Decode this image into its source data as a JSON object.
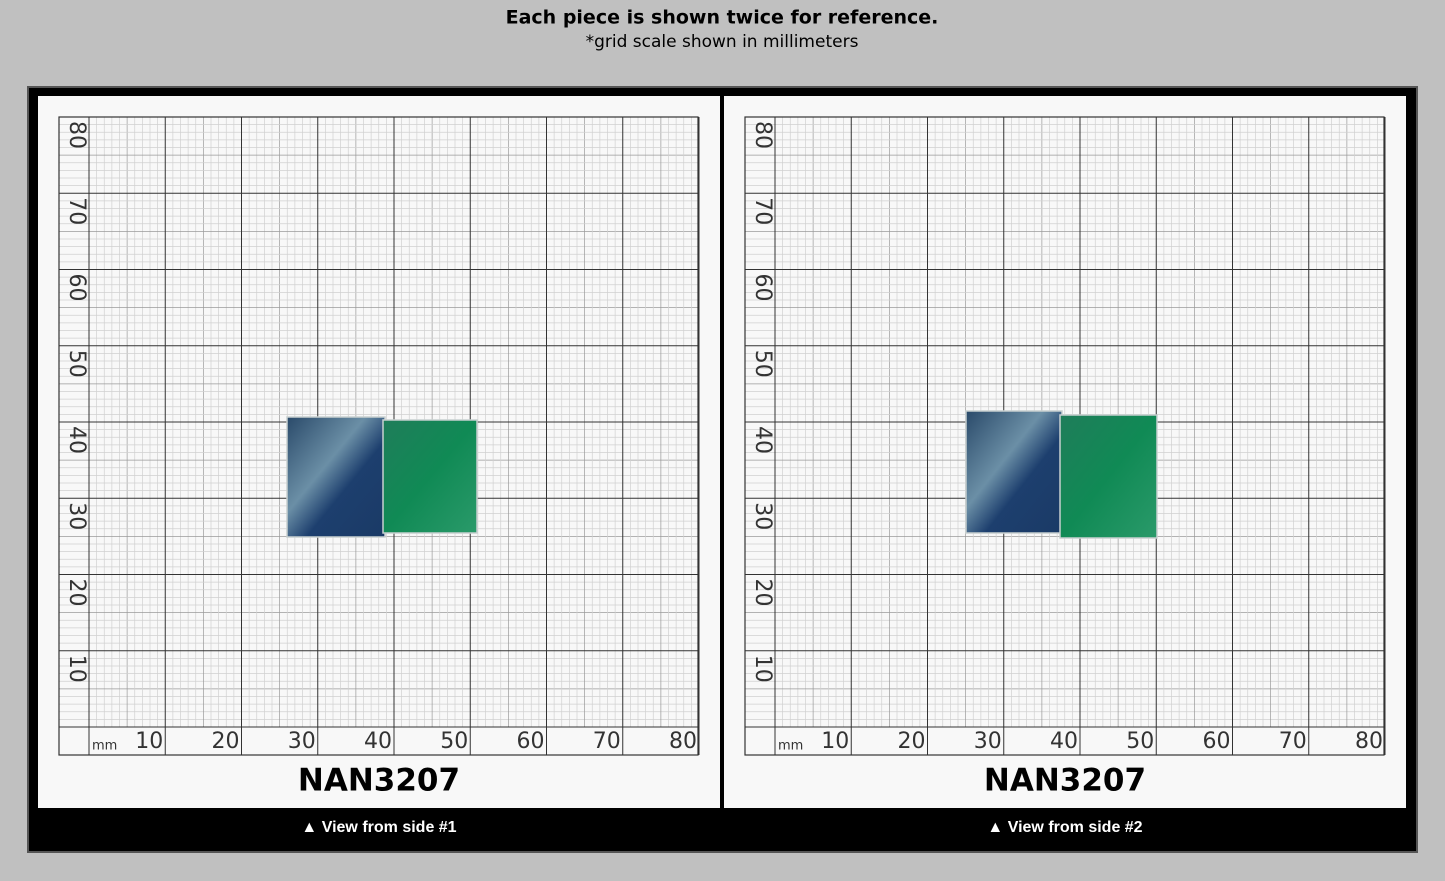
{
  "header": {
    "title": "Each piece is shown twice for reference.",
    "subtitle": "*grid scale shown in millimeters"
  },
  "panels": [
    {
      "x_labels": [
        "mm",
        "10",
        "20",
        "30",
        "40",
        "50",
        "60",
        "70",
        "80"
      ],
      "y_labels": [
        "10",
        "20",
        "30",
        "40",
        "50",
        "60",
        "70",
        "80"
      ],
      "code": "NAN3207",
      "caption": "▲ View from side #1"
    },
    {
      "x_labels": [
        "mm",
        "10",
        "20",
        "30",
        "40",
        "50",
        "60",
        "70",
        "80"
      ],
      "y_labels": [
        "10",
        "20",
        "30",
        "40",
        "50",
        "60",
        "70",
        "80"
      ],
      "code": "NAN3207",
      "caption": "▲ View from side #2"
    }
  ]
}
